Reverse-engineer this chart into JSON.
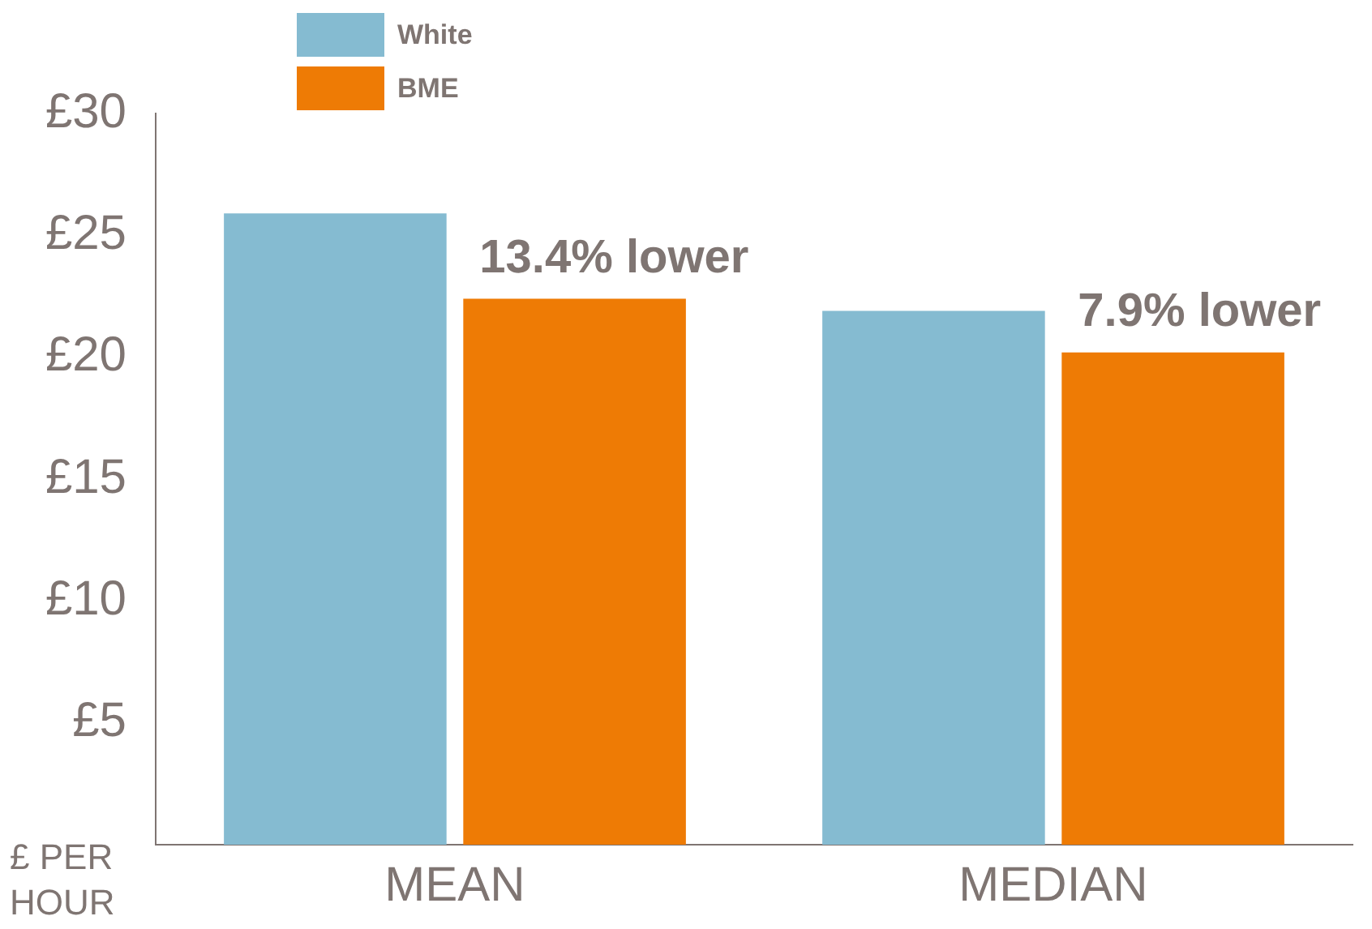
{
  "chart_data": {
    "type": "bar",
    "ylabel": "£ PER HOUR",
    "categories": [
      "MEAN",
      "MEDIAN"
    ],
    "series": [
      {
        "name": "White",
        "color": "#85bbd1",
        "values": [
          25.9,
          21.9
        ]
      },
      {
        "name": "BME",
        "color": "#ee7b05",
        "values": [
          22.4,
          20.2
        ]
      }
    ],
    "ylim": [
      0,
      30
    ],
    "yticks": [
      {
        "value": 0,
        "label": null
      },
      {
        "value": 5,
        "label": "£5"
      },
      {
        "value": 10,
        "label": "£10"
      },
      {
        "value": 15,
        "label": "£15"
      },
      {
        "value": 20,
        "label": "£20"
      },
      {
        "value": 25,
        "label": "£25"
      },
      {
        "value": 30,
        "label": "£30"
      }
    ],
    "annotations": [
      "13.4% lower",
      "7.9% lower"
    ],
    "grid": false,
    "legend": "top left"
  }
}
